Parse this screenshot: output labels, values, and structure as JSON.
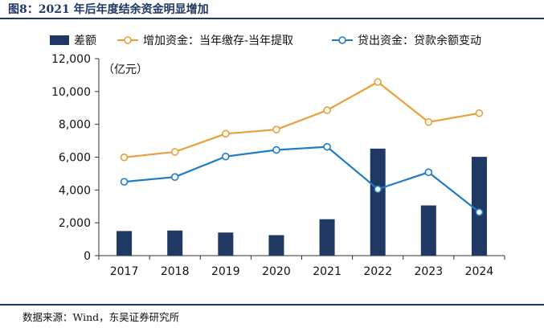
{
  "figure_title": "图8：2021 年后年度结余资金明显增加",
  "source_note": "数据来源：Wind，东吴证券研究所",
  "colors": {
    "bar": "#1f3864",
    "line_deposits": "#e8a13a",
    "line_loans": "#1f7cc4",
    "axis": "#333333",
    "title": "#1f3864"
  },
  "chart_data": {
    "type": "bar+line",
    "title": "2021 年后年度结余资金明显增加",
    "unit_label": "（亿元）",
    "categories": [
      "2017",
      "2018",
      "2019",
      "2020",
      "2021",
      "2022",
      "2023",
      "2024"
    ],
    "ylim": [
      0,
      12000
    ],
    "yticks": [
      0,
      2000,
      4000,
      6000,
      8000,
      10000,
      12000
    ],
    "ytick_labels": [
      "0",
      "2,000",
      "4,000",
      "6,000",
      "8,000",
      "10,000",
      "12,000"
    ],
    "legend_position": "top",
    "grid": false,
    "series": [
      {
        "name": "差额",
        "type": "bar",
        "values": [
          1500,
          1530,
          1410,
          1250,
          2220,
          6520,
          3060,
          6020
        ]
      },
      {
        "name": "增加资金：当年缴存-当年提取",
        "type": "line",
        "values": [
          5990,
          6320,
          7430,
          7680,
          8860,
          10580,
          8140,
          8680
        ]
      },
      {
        "name": "贷出资金：贷款余额变动",
        "type": "line",
        "values": [
          4500,
          4790,
          6040,
          6440,
          6630,
          4050,
          5080,
          2650
        ]
      }
    ]
  }
}
